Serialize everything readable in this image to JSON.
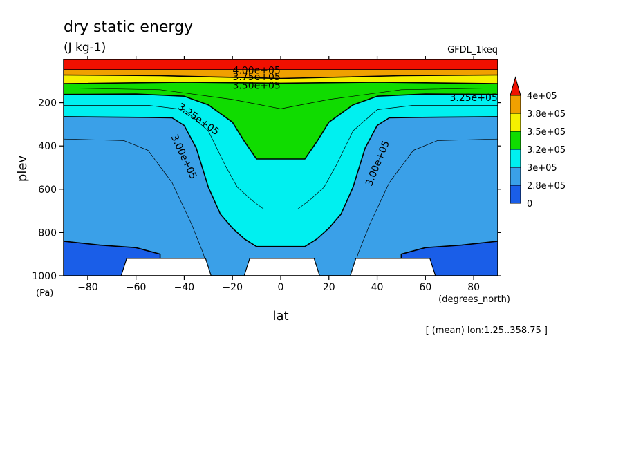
{
  "header": {
    "title": "dry static energy",
    "units": "(J kg-1)",
    "model": "GFDL_1keq",
    "footnote": "[ (mean) lon:1.25..358.75 ]"
  },
  "chart_data": {
    "type": "heatmap",
    "plot_kind": "latitude-pressure filled contour",
    "title": "dry static energy",
    "units": "(J kg-1)",
    "xlabel": "lat",
    "xunits": "(degrees_north)",
    "ylabel": "plev",
    "yunits": "(Pa)",
    "xlim": [
      -90,
      90
    ],
    "ylim": [
      1000,
      0
    ],
    "y_inverted": true,
    "x_ticks": [
      -80,
      -60,
      -40,
      -20,
      0,
      20,
      40,
      60,
      80
    ],
    "y_ticks": [
      200,
      400,
      600,
      800,
      1000
    ],
    "colorbar": {
      "labels": [
        "4e+05",
        "3.8e+05",
        "3.5e+05",
        "3.2e+05",
        "3e+05",
        "2.8e+05",
        "0"
      ],
      "bands": [
        {
          "from": 0,
          "to": 275000,
          "color": "#1a76ec"
        },
        {
          "from": 275000,
          "to": 300000,
          "color": "#3aa0e8"
        },
        {
          "from": 300000,
          "to": 325000,
          "color": "#00f0f0"
        },
        {
          "from": 325000,
          "to": 350000,
          "color": "#10dc00"
        },
        {
          "from": 350000,
          "to": 375000,
          "color": "#f5f000"
        },
        {
          "from": 375000,
          "to": 400000,
          "color": "#f0a000"
        },
        {
          "from": 400000,
          "to": null,
          "color": "#f01000"
        }
      ],
      "triangle_top_color": "#f01000",
      "bottom_color": "#1a5ee8"
    },
    "contour_labels": [
      {
        "text": "4.00e+05",
        "lat": -10,
        "plev": 50
      },
      {
        "text": "3.75e+05",
        "lat": -10,
        "plev": 80
      },
      {
        "text": "3.50e+05",
        "lat": -10,
        "plev": 120
      },
      {
        "text": "3.25e+05",
        "lat": 80,
        "plev": 175
      },
      {
        "text": "3.25e+05",
        "lat": -34,
        "plev": 275
      },
      {
        "text": "3.00e+05",
        "lat": -40,
        "plev": 450
      },
      {
        "text": "3.00e+05",
        "lat": 40,
        "plev": 480
      }
    ],
    "levels": {
      "l400": [
        [
          -90,
          48
        ],
        [
          90,
          48
        ]
      ],
      "l375": [
        [
          -90,
          72
        ],
        [
          -50,
          75
        ],
        [
          0,
          88
        ],
        [
          50,
          75
        ],
        [
          90,
          72
        ]
      ],
      "l350": [
        [
          -90,
          112
        ],
        [
          -40,
          105
        ],
        [
          0,
          110
        ],
        [
          40,
          105
        ],
        [
          90,
          112
        ]
      ],
      "l325": [
        [
          -90,
          162
        ],
        [
          -60,
          160
        ],
        [
          -40,
          170
        ],
        [
          -30,
          210
        ],
        [
          -20,
          290
        ],
        [
          -15,
          380
        ],
        [
          -10,
          460
        ],
        [
          10,
          460
        ],
        [
          15,
          380
        ],
        [
          20,
          290
        ],
        [
          30,
          210
        ],
        [
          40,
          170
        ],
        [
          60,
          160
        ],
        [
          90,
          162
        ]
      ],
      "l300": [
        [
          -90,
          265
        ],
        [
          -55,
          268
        ],
        [
          -45,
          270
        ],
        [
          -40,
          305
        ],
        [
          -35,
          410
        ],
        [
          -30,
          590
        ],
        [
          -25,
          715
        ],
        [
          -20,
          780
        ],
        [
          -15,
          830
        ],
        [
          -10,
          865
        ],
        [
          10,
          865
        ],
        [
          15,
          830
        ],
        [
          20,
          780
        ],
        [
          25,
          715
        ],
        [
          30,
          590
        ],
        [
          35,
          410
        ],
        [
          40,
          305
        ],
        [
          45,
          270
        ],
        [
          55,
          268
        ],
        [
          90,
          265
        ]
      ],
      "l275": [
        [
          -90,
          840
        ],
        [
          -75,
          858
        ],
        [
          -60,
          870
        ],
        [
          -50,
          900
        ],
        [
          -50,
          1000
        ],
        [
          50,
          1000
        ],
        [
          50,
          900
        ],
        [
          60,
          870
        ],
        [
          75,
          858
        ],
        [
          90,
          840
        ]
      ],
      "thin337": [
        [
          -90,
          132
        ],
        [
          -50,
          140
        ],
        [
          -20,
          185
        ],
        [
          0,
          228
        ],
        [
          20,
          185
        ],
        [
          50,
          140
        ],
        [
          90,
          132
        ]
      ],
      "thin312": [
        [
          -90,
          212
        ],
        [
          -55,
          212
        ],
        [
          -40,
          232
        ],
        [
          -30,
          330
        ],
        [
          -23,
          490
        ],
        [
          -18,
          590
        ],
        [
          -12,
          650
        ],
        [
          -7,
          692
        ],
        [
          7,
          692
        ],
        [
          12,
          650
        ],
        [
          18,
          590
        ],
        [
          23,
          490
        ],
        [
          30,
          330
        ],
        [
          40,
          232
        ],
        [
          55,
          212
        ],
        [
          90,
          212
        ]
      ],
      "thin287": [
        [
          -90,
          368
        ],
        [
          -65,
          375
        ],
        [
          -55,
          420
        ],
        [
          -45,
          570
        ],
        [
          -37,
          760
        ],
        [
          -32,
          900
        ],
        [
          -30,
          1000
        ],
        [
          30,
          1000
        ],
        [
          32,
          900
        ],
        [
          37,
          760
        ],
        [
          45,
          570
        ],
        [
          55,
          420
        ],
        [
          65,
          375
        ],
        [
          90,
          368
        ]
      ]
    },
    "land_masks": [
      {
        "lat_from": -65,
        "lat_to": -30,
        "plev_top": 920
      },
      {
        "lat_from": -14,
        "lat_to": 15,
        "plev_top": 920
      },
      {
        "lat_from": 30,
        "lat_to": 63,
        "plev_top": 920
      }
    ]
  }
}
